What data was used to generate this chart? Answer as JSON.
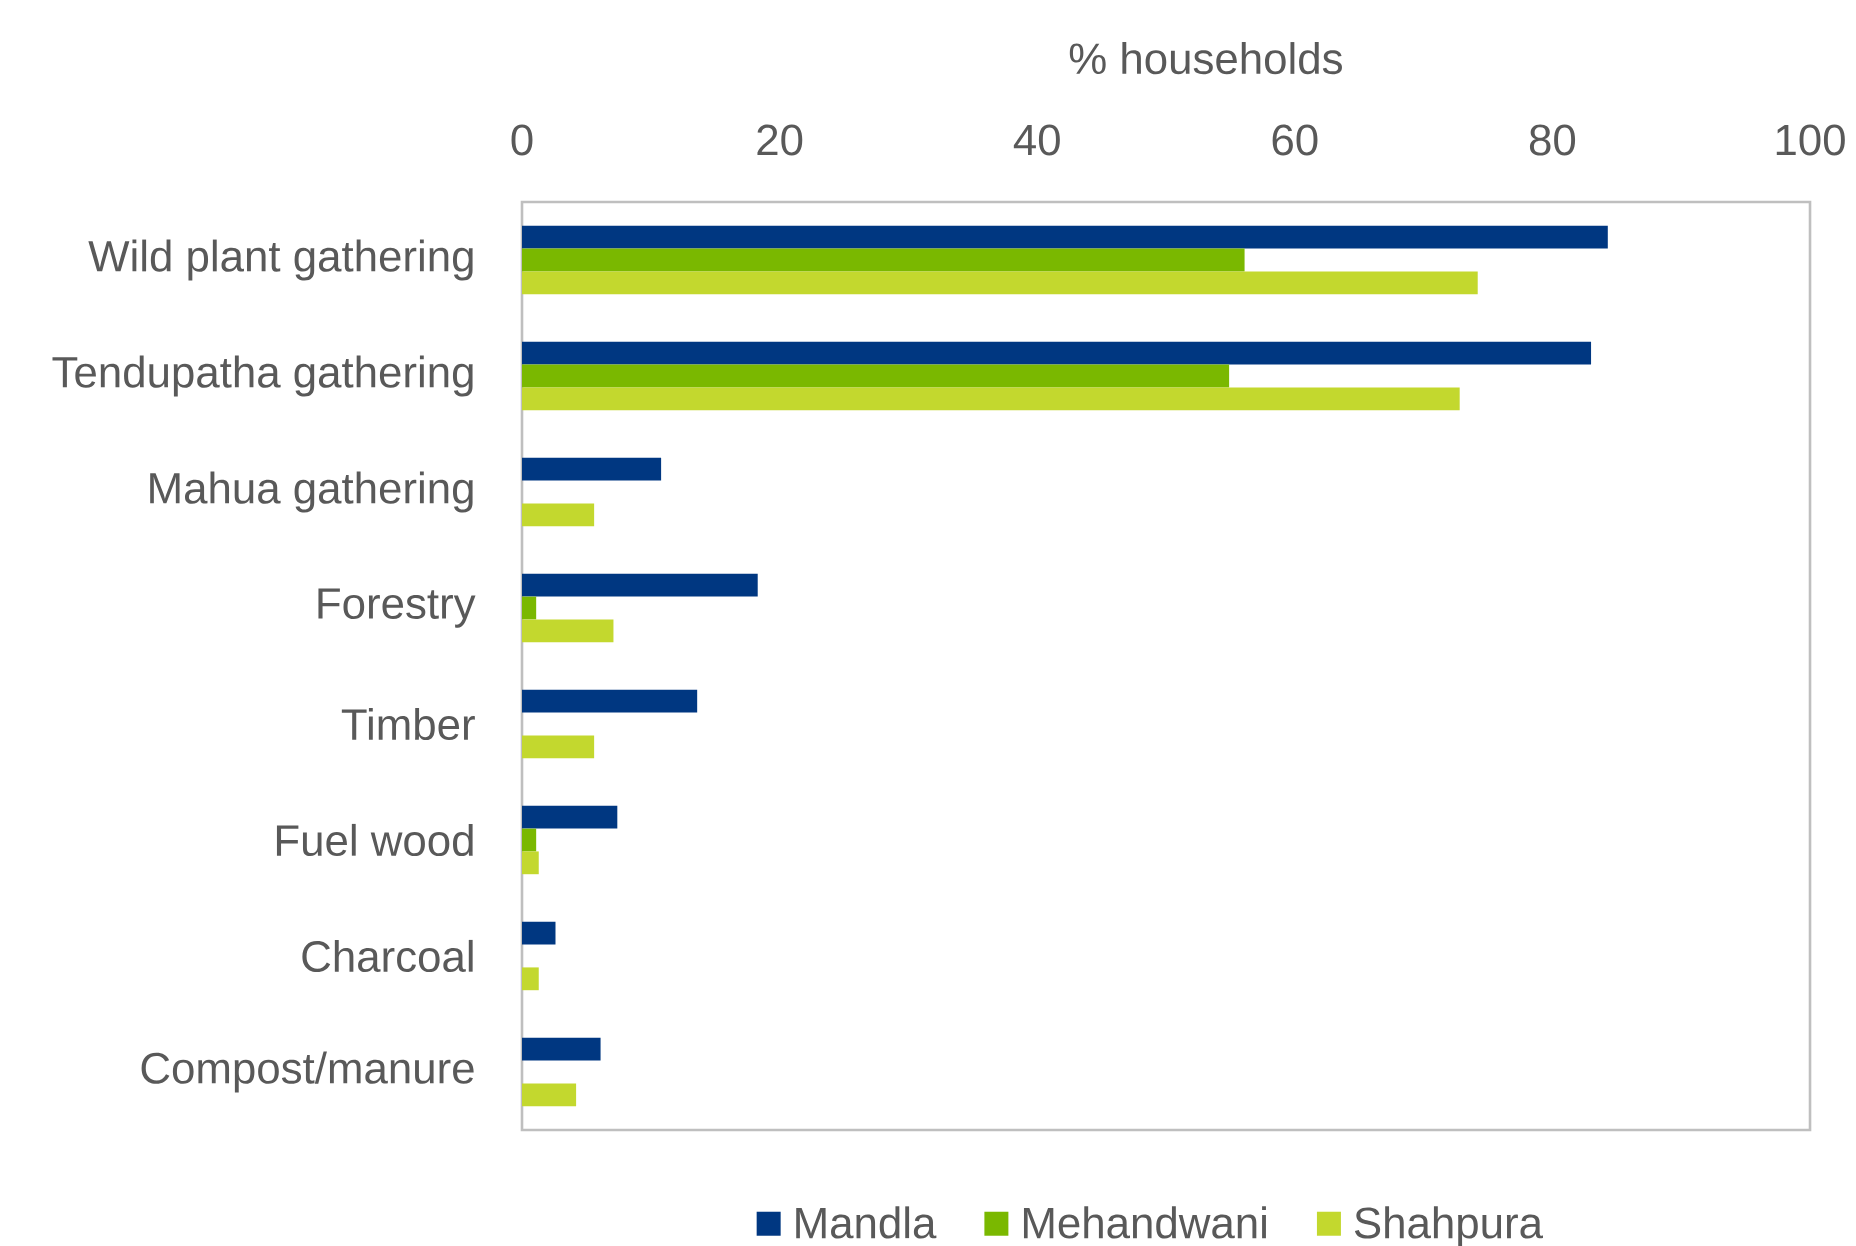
{
  "chart_data": {
    "type": "bar",
    "orientation": "horizontal",
    "xlabel": "% households",
    "categories": [
      "Wild plant gathering",
      "Tendupatha gathering",
      "Mahua gathering",
      "Forestry",
      "Timber",
      "Fuel wood",
      "Charcoal",
      "Compost/manure"
    ],
    "series": [
      {
        "name": "Mandla",
        "color": "#003781",
        "values": [
          84.3,
          83.0,
          10.8,
          18.3,
          13.6,
          7.4,
          2.6,
          6.1
        ]
      },
      {
        "name": "Mehandwani",
        "color": "#7ab800",
        "values": [
          56.1,
          54.9,
          null,
          1.1,
          null,
          1.1,
          null,
          null
        ]
      },
      {
        "name": "Shahpura",
        "color": "#c3d82e",
        "values": [
          74.2,
          72.8,
          5.6,
          7.1,
          5.6,
          1.3,
          1.3,
          4.2
        ]
      }
    ],
    "xlim": [
      0,
      100
    ],
    "xticks": [
      0,
      20,
      40,
      60,
      80,
      100
    ],
    "legend": "bottom"
  }
}
